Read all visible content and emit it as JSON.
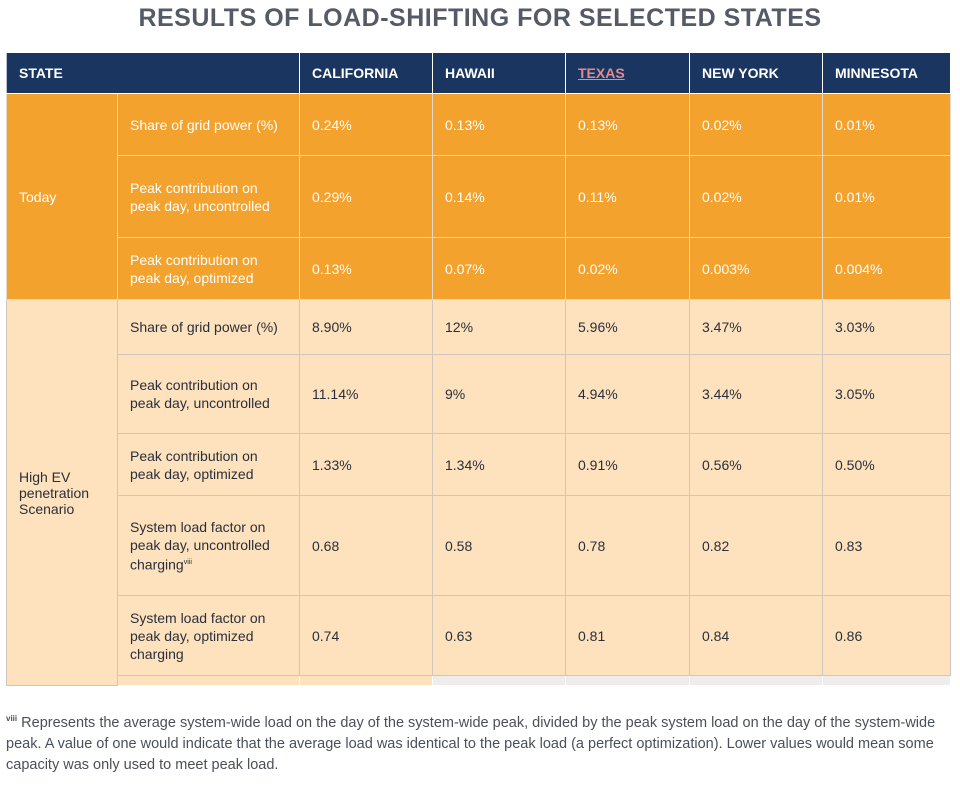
{
  "title": "RESULTS OF LOAD-SHIFTING FOR SELECTED STATES",
  "table": {
    "headers": [
      "STATE",
      "CALIFORNIA",
      "HAWAII",
      "TEXAS",
      "NEW YORK",
      "MINNESOTA"
    ],
    "groups": [
      {
        "label": "Today",
        "rows": [
          {
            "metric": "Share of grid power (%)",
            "values": [
              "0.24%",
              "0.13%",
              "0.13%",
              "0.02%",
              "0.01%"
            ]
          },
          {
            "metric": "Peak contribution on peak day, uncontrolled",
            "values": [
              "0.29%",
              "0.14%",
              "0.11%",
              "0.02%",
              "0.01%"
            ]
          },
          {
            "metric": "Peak contribution on peak day, optimized",
            "values": [
              "0.13%",
              "0.07%",
              "0.02%",
              "0.003%",
              "0.004%"
            ]
          }
        ]
      },
      {
        "label": "High EV penetration Scenario",
        "rows": [
          {
            "metric": "Share of grid power (%)",
            "values": [
              "8.90%",
              "12%",
              "5.96%",
              "3.47%",
              "3.03%"
            ]
          },
          {
            "metric": "Peak contribution on peak day, uncontrolled",
            "values": [
              "11.14%",
              "9%",
              "4.94%",
              "3.44%",
              "3.05%"
            ]
          },
          {
            "metric": "Peak contribution on peak day, optimized",
            "values": [
              "1.33%",
              "1.34%",
              "0.91%",
              "0.56%",
              "0.50%"
            ]
          },
          {
            "metric": "System load factor on peak day, uncontrolled charging",
            "footnote_mark": "viii",
            "values": [
              "0.68",
              "0.58",
              "0.78",
              "0.82",
              "0.83"
            ]
          },
          {
            "metric": "System load factor on peak day, optimized charging",
            "values": [
              "0.74",
              "0.63",
              "0.81",
              "0.84",
              "0.86"
            ]
          }
        ]
      }
    ]
  },
  "footnote": {
    "mark": "viii",
    "text": "Represents the average system-wide load on the day of the system-wide peak, divided by the peak system load on the day of the system-wide peak. A value of one would indicate that the average load was identical to the peak load (a perfect optimization). Lower values would mean some capacity was only used to meet peak load."
  },
  "colors": {
    "header_bg": "#1b3561",
    "today_bg": "#f4a22e",
    "scenario_bg": "#fde2bd",
    "title_text": "#555b66"
  }
}
